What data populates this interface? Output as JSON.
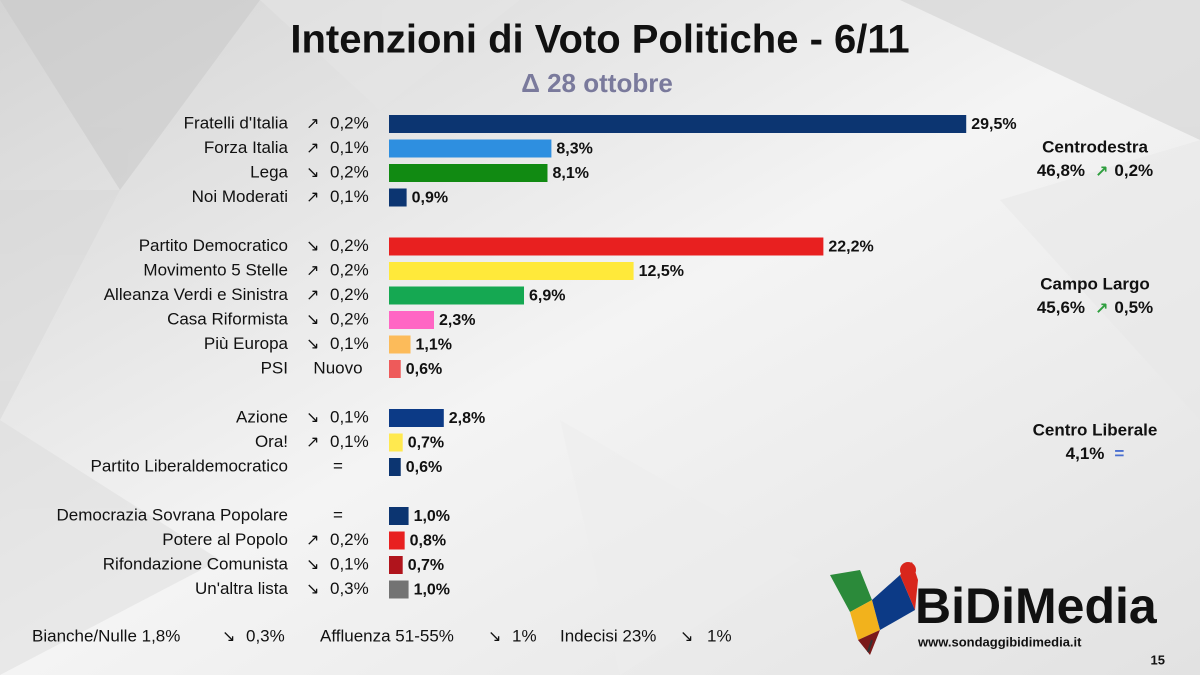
{
  "header": {
    "title": "Intenzioni di Voto Politiche  - 6/11",
    "subtitle": "Δ 28 ottobre"
  },
  "chart_data": [
    {
      "type": "bar",
      "xlim": [
        0,
        30
      ],
      "categories": [
        "Fratelli d'Italia",
        "Forza Italia",
        "Lega",
        "Noi Moderati"
      ],
      "values": [
        29.5,
        8.3,
        8.1,
        0.9
      ],
      "value_labels": [
        "29,5%",
        "8,3%",
        "8,1%",
        "0,9%"
      ],
      "colors": [
        "#0c3571",
        "#2e8fe0",
        "#118a12",
        "#0c3571"
      ],
      "deltas": [
        "0,2%",
        "0,1%",
        "0,2%",
        "0,1%"
      ],
      "trends": [
        "up",
        "up",
        "down",
        "up"
      ],
      "coalition": {
        "name": "Centrodestra",
        "total": "46,8%",
        "delta": "0,2%",
        "trend": "up"
      }
    },
    {
      "type": "bar",
      "xlim": [
        0,
        30
      ],
      "categories": [
        "Partito Democratico",
        "Movimento 5 Stelle",
        "Alleanza Verdi e Sinistra",
        "Casa Riformista",
        "Più Europa",
        "PSI"
      ],
      "values": [
        22.2,
        12.5,
        6.9,
        2.3,
        1.1,
        0.6
      ],
      "value_labels": [
        "22,2%",
        "12,5%",
        "6,9%",
        "2,3%",
        "1,1%",
        "0,6%"
      ],
      "colors": [
        "#e82020",
        "#ffe93a",
        "#15a852",
        "#ff66c4",
        "#fcbb5a",
        "#ee5a5a"
      ],
      "deltas": [
        "0,2%",
        "0,2%",
        "0,2%",
        "0,2%",
        "0,1%",
        "Nuovo"
      ],
      "trends": [
        "down",
        "up",
        "up",
        "down",
        "down",
        "new"
      ],
      "coalition": {
        "name": "Campo Largo",
        "total": "45,6%",
        "delta": "0,5%",
        "trend": "up"
      }
    },
    {
      "type": "bar",
      "xlim": [
        0,
        30
      ],
      "categories": [
        "Azione",
        "Ora!",
        "Partito Liberaldemocratico"
      ],
      "values": [
        2.8,
        0.7,
        0.6
      ],
      "value_labels": [
        "2,8%",
        "0,7%",
        "0,6%"
      ],
      "colors": [
        "#0c3a86",
        "#ffe94f",
        "#0c3571"
      ],
      "deltas": [
        "0,1%",
        "0,1%",
        "="
      ],
      "trends": [
        "down",
        "up",
        "equal"
      ],
      "coalition": {
        "name": "Centro Liberale",
        "total": "4,1%",
        "delta": "=",
        "trend": "equal"
      }
    },
    {
      "type": "bar",
      "xlim": [
        0,
        30
      ],
      "categories": [
        "Democrazia Sovrana Popolare",
        "Potere al Popolo",
        "Rifondazione Comunista",
        "Un'altra lista"
      ],
      "values": [
        1.0,
        0.8,
        0.7,
        1.0
      ],
      "value_labels": [
        "1,0%",
        "0,8%",
        "0,7%",
        "1,0%"
      ],
      "colors": [
        "#0c3571",
        "#e82020",
        "#b0141c",
        "#737373"
      ],
      "deltas": [
        "=",
        "0,2%",
        "0,1%",
        "0,3%"
      ],
      "trends": [
        "equal",
        "up",
        "down",
        "down"
      ]
    }
  ],
  "footer": [
    {
      "label": "Bianche/Nulle 1,8%",
      "delta": "0,3%",
      "trend": "down"
    },
    {
      "label": "Affluenza 51-55%",
      "delta": "1%",
      "trend": "down"
    },
    {
      "label": "Indecisi 23%",
      "delta": "1%",
      "trend": "down"
    }
  ],
  "branding": {
    "name": "BiDiMedia",
    "url": "www.sondaggibidimedia.it",
    "page": "15"
  }
}
